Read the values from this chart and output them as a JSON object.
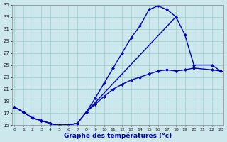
{
  "xlabel": "Graphe des températures (°c)",
  "xlim": [
    -0.3,
    23.3
  ],
  "ylim": [
    15,
    35
  ],
  "yticks": [
    15,
    17,
    19,
    21,
    23,
    25,
    27,
    29,
    31,
    33,
    35
  ],
  "xticks": [
    0,
    1,
    2,
    3,
    4,
    5,
    6,
    7,
    8,
    9,
    10,
    11,
    12,
    13,
    14,
    15,
    16,
    17,
    18,
    19,
    20,
    21,
    22,
    23
  ],
  "bg_color": "#cce8ec",
  "grid_color": "#99cccc",
  "line_color": "#0000bb",
  "line1_x": [
    0,
    1,
    2,
    3,
    4,
    5,
    6,
    7,
    8,
    9,
    10,
    11,
    12,
    13,
    14,
    15,
    16,
    17,
    18
  ],
  "line1_y": [
    18.0,
    17.2,
    16.2,
    15.8,
    15.3,
    15.0,
    15.1,
    15.3,
    17.2,
    19.5,
    22.0,
    24.5,
    27.0,
    29.5,
    31.5,
    34.2,
    34.8,
    34.2,
    33.0
  ],
  "line2_x": [
    0,
    1,
    2,
    3,
    4,
    5,
    6,
    7,
    8,
    18,
    19,
    20,
    22,
    23
  ],
  "line2_y": [
    18.0,
    17.2,
    16.2,
    15.8,
    15.3,
    15.0,
    15.1,
    15.3,
    17.2,
    33.0,
    30.0,
    25.0,
    25.0,
    24.0
  ],
  "line3_x": [
    0,
    1,
    2,
    3,
    4,
    5,
    6,
    7,
    8,
    9,
    10,
    11,
    12,
    13,
    14,
    15,
    16,
    17,
    18,
    19,
    20,
    22,
    23
  ],
  "line3_y": [
    18.0,
    17.2,
    16.2,
    15.8,
    15.3,
    15.0,
    15.1,
    15.3,
    17.2,
    18.5,
    19.8,
    21.0,
    21.8,
    22.5,
    23.0,
    23.5,
    24.0,
    24.2,
    24.0,
    24.2,
    24.5,
    24.2,
    24.0
  ]
}
